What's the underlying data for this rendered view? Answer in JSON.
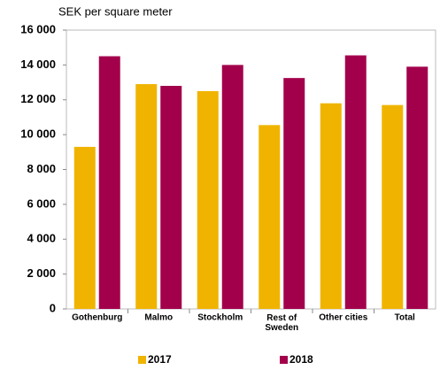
{
  "chart_data": {
    "type": "bar",
    "subtitle": "SEK per square meter",
    "categories": [
      "Gothenburg",
      "Malmo",
      "Stockholm",
      "Rest of\nSweden",
      "Other cities",
      "Total"
    ],
    "series": [
      {
        "name": "2017",
        "color": "#f0b400",
        "values": [
          9300,
          12900,
          12500,
          10550,
          11800,
          11700
        ]
      },
      {
        "name": "2018",
        "color": "#a3004c",
        "values": [
          14500,
          12800,
          14000,
          13250,
          14550,
          13900
        ]
      }
    ],
    "ylim": [
      0,
      16000
    ],
    "yticks": [
      0,
      {
        "value": 2000,
        "label": "2 000"
      },
      {
        "value": 4000,
        "label": "4 000"
      },
      {
        "value": 6000,
        "label": "6 000"
      },
      {
        "value": 8000,
        "label": "8 000"
      },
      {
        "value": 10000,
        "label": "10 000"
      },
      {
        "value": 12000,
        "label": "12 000"
      },
      {
        "value": 14000,
        "label": "14 000"
      },
      {
        "value": 16000,
        "label": "16 000"
      }
    ],
    "grid": false
  }
}
